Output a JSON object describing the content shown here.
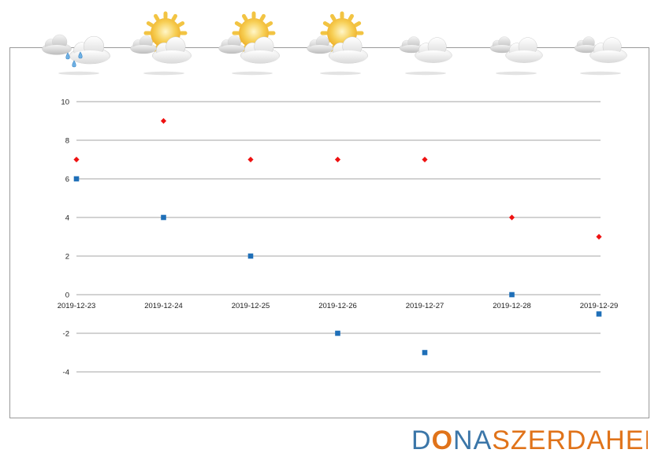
{
  "weather_icons": [
    "cloud-rain-icon",
    "sun-cloud-icon",
    "sun-cloud-icon",
    "sun-cloud-icon",
    "cloud-icon",
    "cloud-icon",
    "cloud-icon"
  ],
  "colors": {
    "max_series": "#ee1111",
    "min_series": "#1f6fb8",
    "grid": "#a6a6a6",
    "logo_blue": "#3b76a8",
    "logo_orange": "#e0731a"
  },
  "chart_data": {
    "type": "scatter",
    "categories": [
      "2019-12-23",
      "2019-12-24",
      "2019-12-25",
      "2019-12-26",
      "2019-12-27",
      "2019-12-28",
      "2019-12-29"
    ],
    "series": [
      {
        "marker": "diamond",
        "color": "#ee1111",
        "values": [
          7,
          9,
          7,
          7,
          7,
          4,
          3
        ]
      },
      {
        "marker": "square",
        "color": "#1f6fb8",
        "values": [
          6,
          4,
          2,
          -2,
          -3,
          0,
          -1
        ]
      }
    ],
    "ylim": [
      -4,
      10
    ],
    "yticks": [
      10,
      8,
      6,
      4,
      2,
      0,
      -2,
      -4
    ],
    "grid": true,
    "legend": "none"
  },
  "logo": {
    "part1": "D",
    "part2": "NA",
    "part3": "SZERDAHELYI"
  }
}
